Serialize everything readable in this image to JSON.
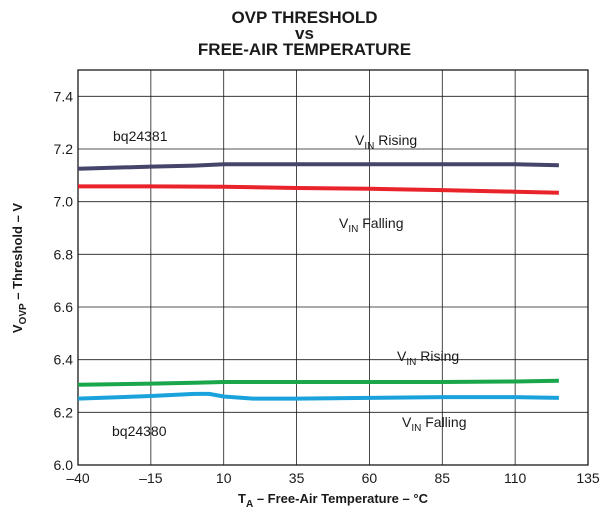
{
  "chart_data": {
    "type": "line",
    "title_lines": [
      "OVP THRESHOLD",
      "vs",
      "FREE-AIR TEMPERATURE"
    ],
    "xlabel": {
      "main": "T",
      "sub": "A",
      "rest": " – Free-Air Temperature – °C"
    },
    "ylabel": {
      "main": "V",
      "sub": "OVP",
      "rest": " – Threshold – V"
    },
    "xlim": [
      -40,
      135
    ],
    "ylim": [
      6.0,
      7.5
    ],
    "xticks": [
      -40,
      -15,
      10,
      35,
      60,
      85,
      110,
      135
    ],
    "xtick_labels": [
      "–40",
      "–15",
      "10",
      "35",
      "60",
      "85",
      "110",
      "135"
    ],
    "yticks": [
      6.0,
      6.2,
      6.4,
      6.6,
      6.8,
      7.0,
      7.2,
      7.4
    ],
    "ytick_labels": [
      "6.0",
      "6.2",
      "6.4",
      "6.6",
      "6.8",
      "7.0",
      "7.2",
      "7.4"
    ],
    "grid": true,
    "series": [
      {
        "device": "bq24381",
        "color": "#45456b",
        "x": [
          -40,
          -15,
          0,
          10,
          35,
          60,
          85,
          110,
          125
        ],
        "y": [
          7.125,
          7.133,
          7.137,
          7.142,
          7.142,
          7.142,
          7.142,
          7.142,
          7.138
        ]
      },
      {
        "device": "bq24381",
        "color": "#e8232a",
        "x": [
          -40,
          -15,
          10,
          35,
          60,
          85,
          110,
          125
        ],
        "y": [
          7.058,
          7.058,
          7.057,
          7.052,
          7.049,
          7.044,
          7.038,
          7.034
        ]
      },
      {
        "device": "bq24380",
        "color": "#1aa64b",
        "x": [
          -40,
          -15,
          0,
          10,
          35,
          60,
          85,
          110,
          125
        ],
        "y": [
          6.305,
          6.309,
          6.312,
          6.315,
          6.315,
          6.315,
          6.315,
          6.317,
          6.32
        ]
      },
      {
        "device": "bq24380",
        "color": "#1aa2dc",
        "x": [
          -40,
          -15,
          0,
          5,
          10,
          20,
          35,
          60,
          85,
          110,
          125
        ],
        "y": [
          6.252,
          6.262,
          6.27,
          6.27,
          6.26,
          6.252,
          6.252,
          6.255,
          6.258,
          6.258,
          6.255
        ]
      }
    ],
    "annotations": {
      "device_top": "bq24381",
      "device_bottom": "bq24380",
      "rising_top": {
        "main": "V",
        "sub": "IN",
        "rest": " Rising"
      },
      "falling_top": {
        "main": "V",
        "sub": "IN",
        "rest": " Falling"
      },
      "rising_bottom": {
        "main": "V",
        "sub": "IN",
        "rest": " Rising"
      },
      "falling_bottom": {
        "main": "V",
        "sub": "IN",
        "rest": " Falling"
      }
    }
  }
}
